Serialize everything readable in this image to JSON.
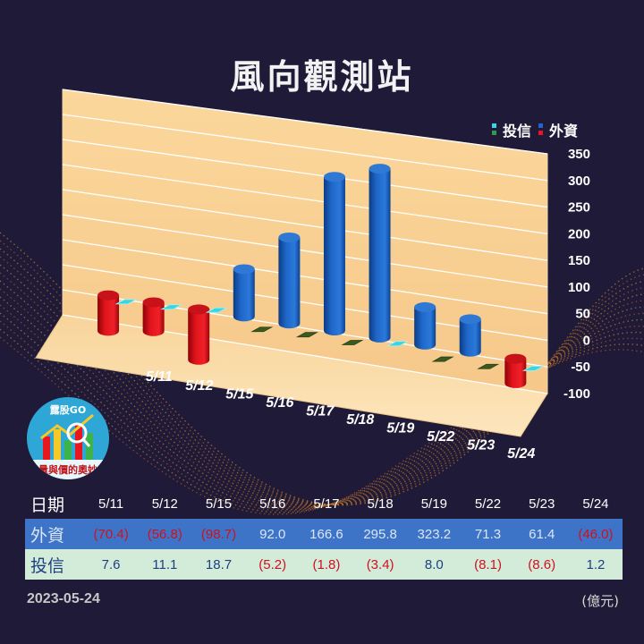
{
  "title": "風向觀測站",
  "legend": {
    "trust_label": "投信",
    "foreign_label": "外資",
    "trust_color": "#38d6e0",
    "foreign_color": "#1f66c8",
    "negative_color": "#e8171f"
  },
  "logo": {
    "top_text": "露股GO",
    "bottom_text": "量與價的奧妙"
  },
  "chart_data": {
    "type": "bar",
    "categories": [
      "5/11",
      "5/12",
      "5/15",
      "5/16",
      "5/17",
      "5/18",
      "5/19",
      "5/22",
      "5/23",
      "5/24"
    ],
    "series": [
      {
        "name": "外資",
        "values": [
          -70.4,
          -56.8,
          -98.7,
          92.0,
          166.6,
          295.8,
          323.2,
          71.3,
          61.4,
          -46.0
        ]
      },
      {
        "name": "投信",
        "values": [
          7.6,
          11.1,
          18.7,
          -5.2,
          -1.8,
          -3.4,
          8.0,
          -8.1,
          -8.6,
          1.2
        ]
      }
    ],
    "yticks": [
      "350",
      "300",
      "250",
      "200",
      "150",
      "100",
      "50",
      "0",
      "-50",
      "-100"
    ],
    "ylim": [
      -100,
      350
    ],
    "grid": true,
    "legend_position": "top-right"
  },
  "table": {
    "header_label": "日期",
    "dates": [
      "5/11",
      "5/12",
      "5/15",
      "5/16",
      "5/17",
      "5/18",
      "5/19",
      "5/22",
      "5/23",
      "5/24"
    ],
    "foreign_label": "外資",
    "foreign": [
      "(70.4)",
      "(56.8)",
      "(98.7)",
      "92.0",
      "166.6",
      "295.8",
      "323.2",
      "71.3",
      "61.4",
      "(46.0)"
    ],
    "trust_label": "投信",
    "trust": [
      "7.6",
      "11.1",
      "18.7",
      "(5.2)",
      "(1.8)",
      "(3.4)",
      "8.0",
      "(8.1)",
      "(8.6)",
      "1.2"
    ]
  },
  "footer": {
    "date": "2023-05-24",
    "unit": "(億元)"
  }
}
